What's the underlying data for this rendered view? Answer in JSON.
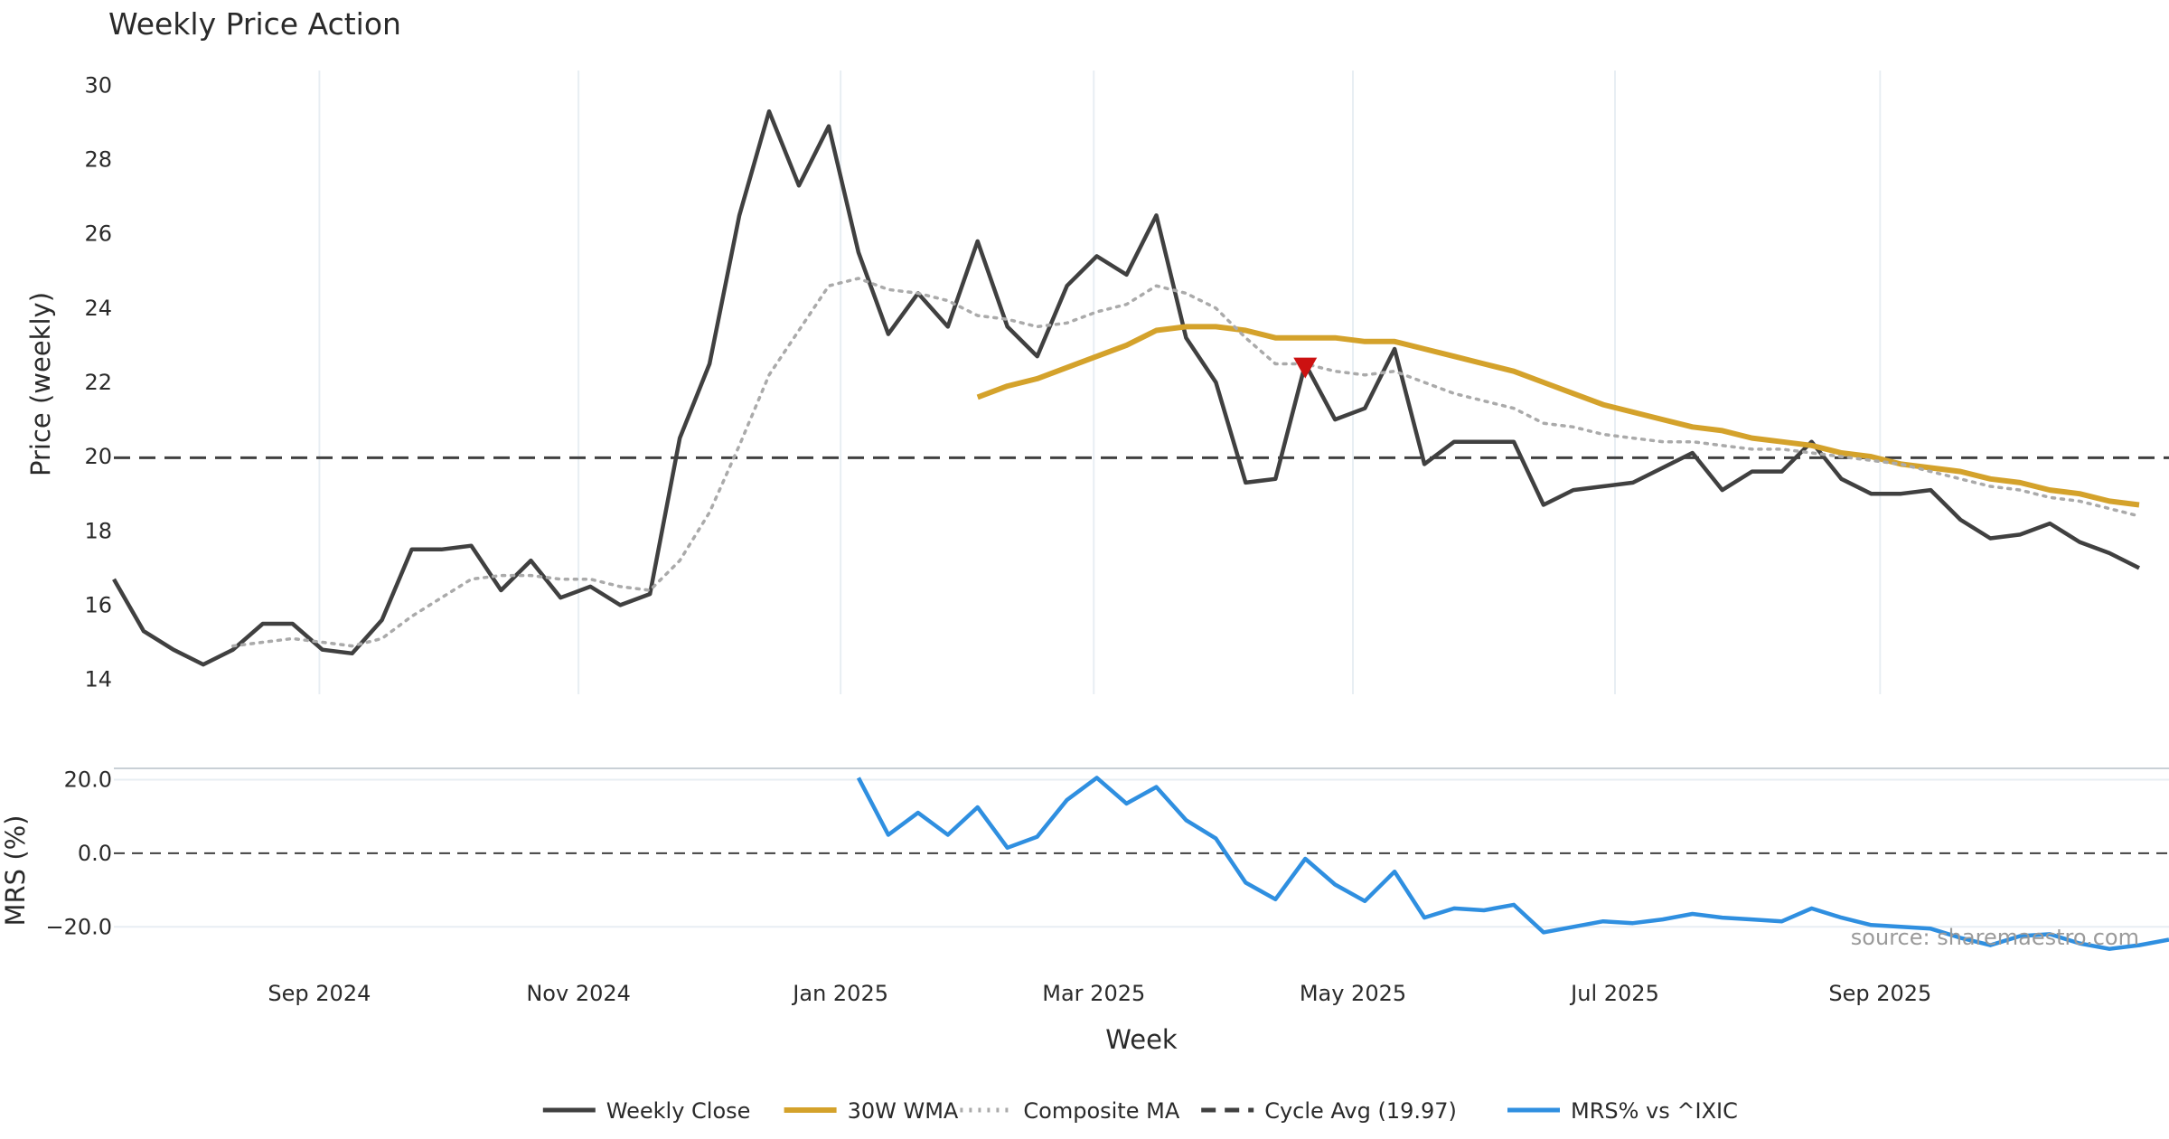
{
  "chart_data": {
    "type": "line",
    "title": "Weekly Price Action",
    "xlabel": "Week",
    "ylabel_price": "Price (weekly)",
    "ylabel_mrs": "MRS (%)",
    "source": "source: sharemaestro.com",
    "price_ylim": [
      13.6,
      30.4
    ],
    "price_yticks": [
      "14",
      "16",
      "18",
      "20",
      "22",
      "24",
      "26",
      "28",
      "30"
    ],
    "mrs_ylim": [
      -27.3,
      21.1
    ],
    "mrs_yticks": [
      {
        "v": 20,
        "label": "20.0"
      },
      {
        "v": 0,
        "label": "0.0"
      },
      {
        "v": -20,
        "label": "−20.0"
      }
    ],
    "x_range": [
      0,
      69
    ],
    "x_ticks": [
      {
        "x": 6.9,
        "label": "Sep 2024"
      },
      {
        "x": 15.6,
        "label": "Nov 2024"
      },
      {
        "x": 24.4,
        "label": "Jan 2025"
      },
      {
        "x": 32.9,
        "label": "Mar 2025"
      },
      {
        "x": 41.6,
        "label": "May 2025"
      },
      {
        "x": 50.4,
        "label": "Jul 2025"
      },
      {
        "x": 59.3,
        "label": "Sep 2025"
      }
    ],
    "series": [
      {
        "name": "Weekly Close",
        "color": "#404040",
        "style": "solid",
        "panel": "price",
        "x_start": 0,
        "values": [
          16.7,
          15.3,
          14.8,
          14.4,
          14.8,
          15.5,
          15.5,
          14.8,
          14.7,
          15.6,
          17.5,
          17.5,
          17.6,
          16.4,
          17.2,
          16.2,
          16.5,
          16.0,
          16.3,
          20.5,
          22.5,
          26.5,
          29.3,
          27.3,
          28.9,
          25.5,
          23.3,
          24.4,
          23.5,
          25.8,
          23.5,
          22.7,
          24.6,
          25.4,
          24.9,
          26.5,
          23.2,
          22.0,
          19.3,
          19.4,
          22.5,
          21.0,
          21.3,
          22.9,
          19.8,
          20.4,
          20.4,
          20.4,
          18.7,
          19.1,
          19.2,
          19.3,
          19.7,
          20.1,
          19.1,
          19.6,
          19.6,
          20.4,
          19.4,
          19.0,
          19.0,
          19.1,
          18.3,
          17.8,
          17.9,
          18.2,
          17.7,
          17.4,
          17.0
        ]
      },
      {
        "name": "30W WMA",
        "color": "#d4a22b",
        "style": "solid",
        "panel": "price",
        "x_start": 29,
        "values": [
          21.6,
          21.9,
          22.1,
          22.4,
          22.7,
          23.0,
          23.4,
          23.5,
          23.5,
          23.4,
          23.2,
          23.2,
          23.2,
          23.1,
          23.1,
          22.9,
          22.7,
          22.5,
          22.3,
          22.0,
          21.7,
          21.4,
          21.2,
          21.0,
          20.8,
          20.7,
          20.5,
          20.4,
          20.3,
          20.1,
          20.0,
          19.8,
          19.7,
          19.6,
          19.4,
          19.3,
          19.1,
          19.0,
          18.8,
          18.7
        ]
      },
      {
        "name": "Composite MA",
        "color": "#aaaaaa",
        "style": "dotted",
        "panel": "price",
        "x_start": 4,
        "values": [
          14.9,
          15.0,
          15.1,
          15.0,
          14.9,
          15.1,
          15.7,
          16.2,
          16.7,
          16.8,
          16.8,
          16.7,
          16.7,
          16.5,
          16.4,
          17.2,
          18.5,
          20.3,
          22.2,
          23.4,
          24.6,
          24.8,
          24.5,
          24.4,
          24.2,
          23.8,
          23.7,
          23.5,
          23.6,
          23.9,
          24.1,
          24.6,
          24.4,
          24.0,
          23.2,
          22.5,
          22.5,
          22.3,
          22.2,
          22.3,
          22.0,
          21.7,
          21.5,
          21.3,
          20.9,
          20.8,
          20.6,
          20.5,
          20.4,
          20.4,
          20.3,
          20.2,
          20.2,
          20.1,
          20.0,
          19.9,
          19.8,
          19.6,
          19.4,
          19.2,
          19.1,
          18.9,
          18.8,
          18.6,
          18.4
        ]
      },
      {
        "name": "MRS% vs ^IXIC",
        "color": "#2f8fe0",
        "style": "solid",
        "panel": "mrs",
        "x_start": 25,
        "values": [
          20.5,
          5.0,
          11.0,
          5.0,
          12.5,
          1.5,
          4.5,
          14.5,
          20.5,
          13.5,
          18.0,
          9.0,
          4.0,
          -8.0,
          -12.5,
          -1.5,
          -8.5,
          -13.0,
          -5.0,
          -17.5,
          -15.0,
          -15.5,
          -14.0,
          -21.5,
          -20.0,
          -18.5,
          -19.0,
          -18.0,
          -16.5,
          -17.5,
          -18.0,
          -18.5,
          -15.0,
          -17.5,
          -19.5,
          -20.0,
          -20.5,
          -23.0,
          -25.0,
          -22.5,
          -22.0,
          -24.5,
          -26.0,
          -25.0,
          -23.5
        ]
      }
    ],
    "reference_lines": [
      {
        "name": "Cycle Avg (19.97)",
        "value": 19.97,
        "panel": "price",
        "color": "#404040",
        "style": "dashed"
      },
      {
        "name": "MRS zero",
        "value": 0,
        "panel": "mrs",
        "color": "#404040",
        "style": "dashed"
      }
    ],
    "markers": [
      {
        "name": "sell-signal",
        "x": 40,
        "y": 22.4,
        "shape": "triangle-down",
        "color": "#cc1111"
      }
    ],
    "legend": {
      "position": "bottom-center",
      "items": [
        {
          "label": "Weekly Close",
          "color": "#404040",
          "style": "solid"
        },
        {
          "label": "30W WMA",
          "color": "#d4a22b",
          "style": "solid"
        },
        {
          "label": "Composite MA",
          "color": "#aaaaaa",
          "style": "dotted"
        },
        {
          "label": "Cycle Avg (19.97)",
          "color": "#404040",
          "style": "dashed"
        },
        {
          "label": "MRS% vs ^IXIC",
          "color": "#2f8fe0",
          "style": "solid"
        }
      ]
    }
  }
}
